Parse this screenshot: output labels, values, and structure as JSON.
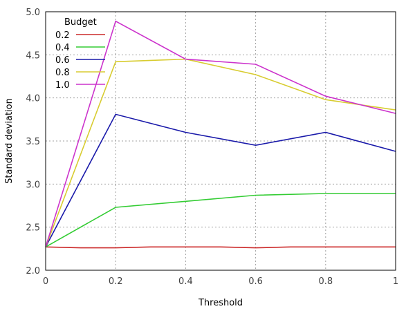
{
  "chart_data": {
    "type": "line",
    "xlabel": "Threshold",
    "ylabel": "Standard deviation",
    "xlim": [
      0,
      1
    ],
    "ylim": [
      2.0,
      5.0
    ],
    "x_ticks": [
      "0",
      "0.2",
      "0.4",
      "0.6",
      "0.8",
      "1"
    ],
    "y_ticks": [
      "2.0",
      "2.5",
      "3.0",
      "3.5",
      "4.0",
      "4.5",
      "5.0"
    ],
    "grid": true,
    "legend": {
      "title": "Budget",
      "placement": "top-left"
    },
    "series": [
      {
        "name": "0.2",
        "color": "#cc2a2a",
        "points": [
          [
            0,
            2.27
          ],
          [
            0.1,
            2.26
          ],
          [
            0.2,
            2.26
          ],
          [
            0.3,
            2.27
          ],
          [
            0.4,
            2.27
          ],
          [
            0.5,
            2.27
          ],
          [
            0.6,
            2.26
          ],
          [
            0.7,
            2.27
          ],
          [
            0.8,
            2.27
          ],
          [
            0.9,
            2.27
          ],
          [
            1.0,
            2.27
          ]
        ]
      },
      {
        "name": "0.4",
        "color": "#33cc33",
        "points": [
          [
            0,
            2.27
          ],
          [
            0.2,
            2.73
          ],
          [
            0.4,
            2.8
          ],
          [
            0.6,
            2.87
          ],
          [
            0.8,
            2.89
          ],
          [
            1.0,
            2.89
          ]
        ]
      },
      {
        "name": "0.6",
        "color": "#1a1aaa",
        "points": [
          [
            0,
            2.27
          ],
          [
            0.2,
            3.81
          ],
          [
            0.4,
            3.6
          ],
          [
            0.6,
            3.45
          ],
          [
            0.8,
            3.6
          ],
          [
            1.0,
            3.38
          ]
        ]
      },
      {
        "name": "0.8",
        "color": "#d8cc30",
        "points": [
          [
            0,
            2.27
          ],
          [
            0.2,
            4.42
          ],
          [
            0.4,
            4.45
          ],
          [
            0.6,
            4.27
          ],
          [
            0.8,
            3.98
          ],
          [
            1.0,
            3.86
          ]
        ]
      },
      {
        "name": "1.0",
        "color": "#cc33cc",
        "points": [
          [
            0,
            2.27
          ],
          [
            0.2,
            4.89
          ],
          [
            0.4,
            4.45
          ],
          [
            0.6,
            4.39
          ],
          [
            0.8,
            4.02
          ],
          [
            1.0,
            3.82
          ]
        ]
      }
    ]
  }
}
